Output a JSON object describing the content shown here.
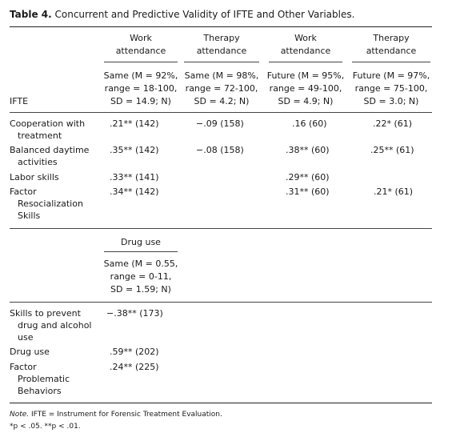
{
  "table": {
    "label": "Table 4.",
    "caption": "Concurrent and Predictive Validity of IFTE and Other Variables."
  },
  "top_section": {
    "columns": [
      {
        "header_line1": "Work",
        "header_line2": "attendance",
        "sub_line1": "Same (M = 92%,",
        "sub_line2": "range = 18-100,",
        "sub_line3": "SD = 14.9; N)"
      },
      {
        "header_line1": "Therapy",
        "header_line2": "attendance",
        "sub_line1": "Same (M = 98%,",
        "sub_line2": "range = 72-100,",
        "sub_line3": "SD = 4.2; N)"
      },
      {
        "header_line1": "Work",
        "header_line2": "attendance",
        "sub_line1": "Future (M = 95%,",
        "sub_line2": "range = 49-100,",
        "sub_line3": "SD = 4.9; N)"
      },
      {
        "header_line1": "Therapy",
        "header_line2": "attendance",
        "sub_line1": "Future (M = 97%,",
        "sub_line2": "range = 75-100,",
        "sub_line3": "SD = 3.0; N)"
      }
    ],
    "stub_header": "IFTE",
    "rows": [
      {
        "label_line1": "Cooperation with",
        "label_line2": "treatment",
        "label_line3": "",
        "cells": [
          ".21** (142)",
          "−.09 (158)",
          ".16 (60)",
          ".22* (61)"
        ]
      },
      {
        "label_line1": "Balanced daytime",
        "label_line2": "activities",
        "label_line3": "",
        "cells": [
          ".35** (142)",
          "−.08 (158)",
          ".38** (60)",
          ".25** (61)"
        ]
      },
      {
        "label_line1": "Labor skills",
        "label_line2": "",
        "label_line3": "",
        "cells": [
          ".33** (141)",
          "",
          ".29** (60)",
          ""
        ]
      },
      {
        "label_line1": "Factor",
        "label_line2": "Resocialization",
        "label_line3": "Skills",
        "cells": [
          ".34** (142)",
          "",
          ".31** (60)",
          ".21* (61)"
        ]
      }
    ]
  },
  "bottom_section": {
    "column": {
      "header": "Drug use",
      "sub_line1": "Same (M = 0.55,",
      "sub_line2": "range = 0-11,",
      "sub_line3": "SD = 1.59; N)"
    },
    "rows": [
      {
        "label_line1": "Skills to prevent",
        "label_line2": "drug and alcohol",
        "label_line3": "use",
        "value": "−.38** (173)"
      },
      {
        "label_line1": "Drug use",
        "label_line2": "",
        "label_line3": "",
        "value": ".59** (202)"
      },
      {
        "label_line1": "Factor",
        "label_line2": "Problematic",
        "label_line3": "Behaviors",
        "value": ".24** (225)"
      }
    ]
  },
  "note": {
    "prefix": "Note.",
    "text": " IFTE = Instrument for Forensic Treatment Evaluation.",
    "sig_line": "*p < .05. **p < .01."
  }
}
